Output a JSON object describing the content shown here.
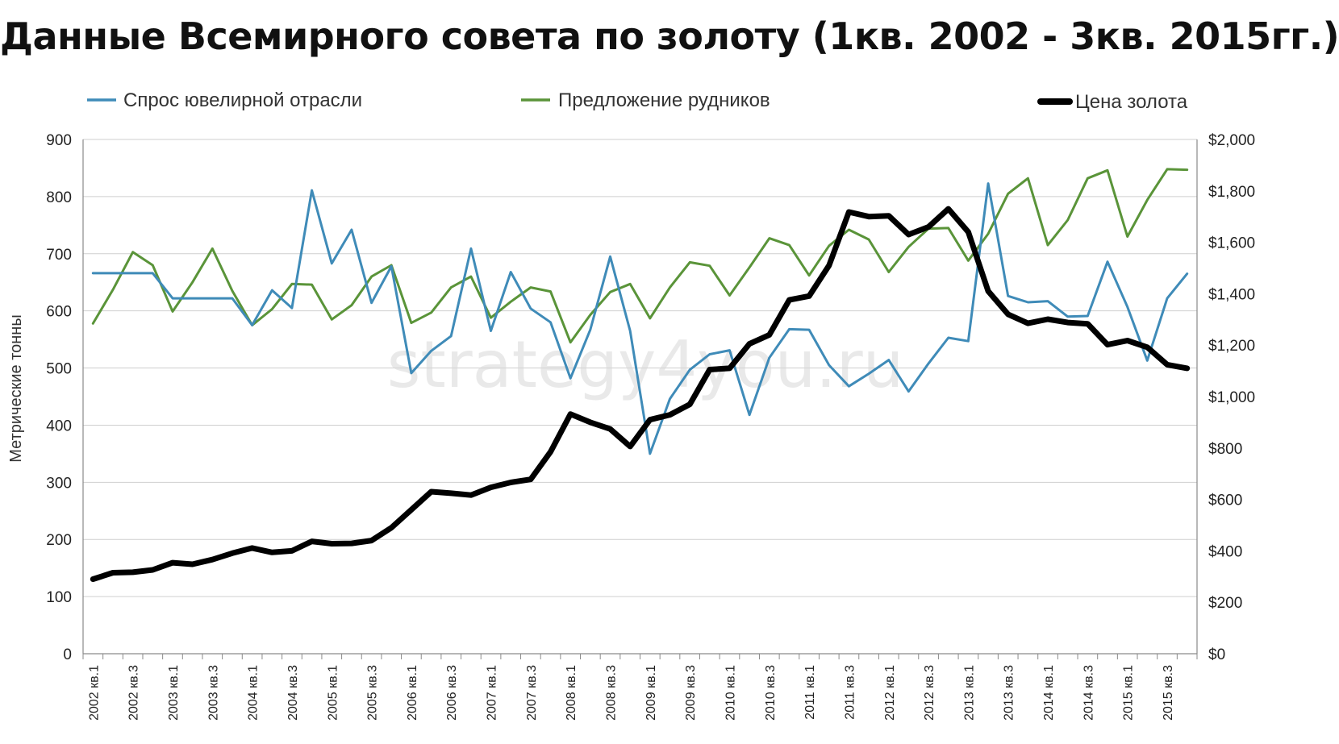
{
  "chart_data": {
    "type": "line",
    "title": "Данные Всемирного совета по золоту (1кв. 2002 - 3кв. 2015гг.)",
    "ylabel_left": "Метрические тонны",
    "watermark": "strategy4you.ru",
    "y_left_lim": [
      0,
      900
    ],
    "y_left_ticks": [
      "0",
      "100",
      "200",
      "300",
      "400",
      "500",
      "600",
      "700",
      "800",
      "900"
    ],
    "y_right_lim": [
      0,
      2000
    ],
    "y_right_ticks": [
      "$0",
      "$200",
      "$400",
      "$600",
      "$800",
      "$1,000",
      "$1,200",
      "$1,400",
      "$1,600",
      "$1,800",
      "$2,000"
    ],
    "x_tick_labels": [
      "2002 кв.1",
      "2002 кв.3",
      "2003 кв.1",
      "2003 кв.3",
      "2004 кв.1",
      "2004 кв.3",
      "2005 кв.1",
      "2005 кв.3",
      "2006 кв.1",
      "2006 кв.3",
      "2007 кв.1",
      "2007 кв.3",
      "2008 кв.1",
      "2008 кв.3",
      "2009 кв.1",
      "2009 кв.3",
      "2010 кв.1",
      "2010 кв.3",
      "2011 кв.1",
      "2011 кв.3",
      "2012 кв.1",
      "2012 кв.3",
      "2013 кв.1",
      "2013 кв.3",
      "2014 кв.1",
      "2014 кв.3",
      "2015 кв.1",
      "2015 кв.3"
    ],
    "legend_position": "top",
    "grid": true,
    "colors": {
      "jewelry": "#3f8bb8",
      "mine": "#5a9439",
      "price": "#000000"
    },
    "series": [
      {
        "name": "Спрос ювелирной отрасли",
        "axis": "left",
        "values": [
          666,
          666,
          666,
          666,
          622,
          622,
          622,
          622,
          575,
          636,
          605,
          811,
          683,
          742,
          614,
          678,
          491,
          530,
          556,
          709,
          565,
          668,
          604,
          580,
          482,
          567,
          695,
          565,
          350,
          446,
          497,
          524,
          531,
          418,
          518,
          568,
          567,
          505,
          468,
          490,
          514,
          459,
          508,
          553,
          547,
          823,
          626,
          615,
          617,
          590,
          591,
          686,
          607,
          513,
          622,
          665
        ]
      },
      {
        "name": "Предложение рудников",
        "axis": "left",
        "values": [
          578,
          637,
          703,
          680,
          599,
          650,
          709,
          635,
          575,
          603,
          647,
          646,
          585,
          610,
          660,
          680,
          579,
          597,
          641,
          660,
          588,
          616,
          641,
          634,
          545,
          593,
          633,
          647,
          587,
          641,
          685,
          679,
          627,
          676,
          727,
          715,
          662,
          714,
          742,
          725,
          668,
          712,
          744,
          745,
          688,
          735,
          805,
          832,
          715,
          759,
          832,
          846,
          730,
          794,
          848,
          847
        ]
      },
      {
        "name": "Цена золота",
        "axis": "right",
        "values": [
          290,
          315,
          317,
          326,
          354,
          348,
          366,
          391,
          411,
          394,
          400,
          437,
          428,
          429,
          440,
          490,
          560,
          630,
          624,
          617,
          647,
          666,
          678,
          785,
          932,
          900,
          874,
          806,
          910,
          929,
          970,
          1105,
          1110,
          1205,
          1240,
          1376,
          1391,
          1510,
          1718,
          1700,
          1703,
          1630,
          1660,
          1730,
          1640,
          1410,
          1320,
          1285,
          1301,
          1288,
          1283,
          1202,
          1218,
          1192,
          1124,
          1110
        ]
      }
    ]
  }
}
